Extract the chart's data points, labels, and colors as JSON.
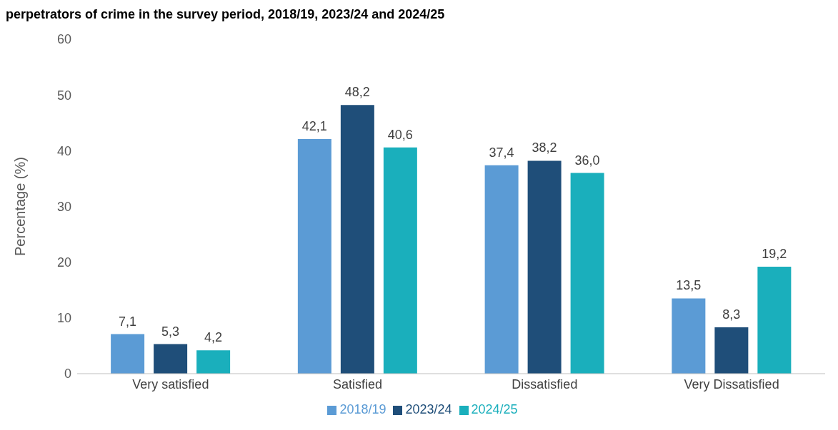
{
  "chart_data": {
    "type": "bar",
    "title": "perpetrators of crime in the survey period, 2018/19, 2023/24 and 2024/25",
    "ylabel": "Percentage (%)",
    "categories": [
      "Very satisfied",
      "Satisfied",
      "Dissatisfied",
      "Very Dissatisfied"
    ],
    "series": [
      {
        "name": "2018/19",
        "color": "#5b9bd5",
        "values": [
          7.1,
          42.1,
          37.4,
          13.5
        ],
        "value_labels": [
          "7,1",
          "42,1",
          "37,4",
          "13,5"
        ]
      },
      {
        "name": "2023/24",
        "color": "#1f4e79",
        "values": [
          5.3,
          48.2,
          38.2,
          8.3
        ],
        "value_labels": [
          "5,3",
          "48,2",
          "38,2",
          "8,3"
        ]
      },
      {
        "name": "2024/25",
        "color": "#1aafbc",
        "values": [
          4.2,
          40.6,
          36.0,
          19.2
        ],
        "value_labels": [
          "4,2",
          "40,6",
          "36,0",
          "19,2"
        ]
      }
    ],
    "ylim": [
      0,
      60
    ],
    "yticks": [
      0,
      10,
      20,
      30,
      40,
      50,
      60
    ],
    "grid": false,
    "legend": "bottom"
  }
}
